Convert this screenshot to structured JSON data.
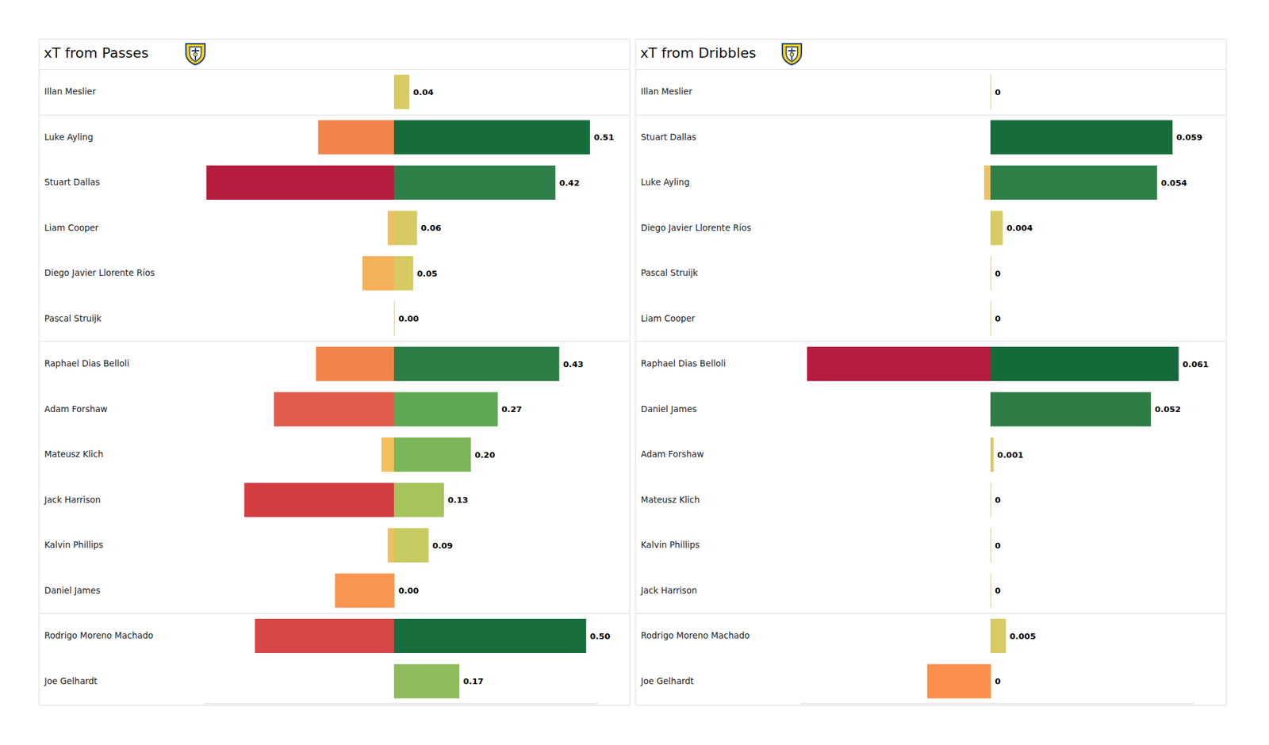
{
  "chart_data": [
    {
      "type": "bar",
      "orientation": "horizontal",
      "title": "xT from Passes",
      "categories": [
        "Illan Meslier",
        "Luke Ayling",
        "Stuart Dallas",
        "Liam Cooper",
        "Diego Javier Llorente Ríos",
        "Pascal Struijk",
        "Raphael Dias Belloli",
        "Adam Forshaw",
        "Mateusz Klich",
        "Jack Harrison",
        "Kalvin Phillips",
        "Daniel James",
        "Rodrigo Moreno Machado",
        "Joe Gelhardt"
      ],
      "series": [
        {
          "values": [
            0.04,
            0.51,
            0.42,
            0.06,
            0.05,
            0,
            0.43,
            0.27,
            0.2,
            0.13,
            0.09,
            0,
            0.5,
            0.17
          ],
          "value_labels": [
            "0.04",
            "0.51",
            "0.42",
            "0.06",
            "0.05",
            "0.00",
            "0.43",
            "0.27",
            "0.20",
            "0.13",
            "0.09",
            "0.00",
            "0.50",
            "0.17"
          ],
          "colors": [
            "#d8cb62",
            "#166d3b",
            "#2e8049",
            "#d6cb63",
            "#d7ca62",
            "#e0c85a",
            "#2d7d47",
            "#5ea854",
            "#7cb65a",
            "#a6c35c",
            "#c6cc62",
            "#e0c85a",
            "#176e3c",
            "#90bb5c"
          ]
        },
        {
          "axis": "y2",
          "values": [
            0,
            -0.036,
            -0.089,
            -0.003,
            -0.015,
            0,
            -0.037,
            -0.057,
            -0.006,
            -0.071,
            -0.003,
            -0.028,
            -0.066,
            0
          ],
          "colors": [
            "#e8c55a",
            "#f2834b",
            "#b71b3d",
            "#f0c060",
            "#f5b05a",
            "#e8c55a",
            "#f2834b",
            "#e05b4b",
            "#f3c05b",
            "#d33e43",
            "#f0c060",
            "#fa9550",
            "#d64745",
            "#e8c55a"
          ]
        }
      ],
      "ylim": [
        0,
        0.53
      ],
      "y2lim": [
        -0.09,
        0
      ],
      "data_labels": true,
      "tick_labels": false,
      "grid": false
    },
    {
      "type": "bar",
      "orientation": "horizontal",
      "title": "xT from Dribbles",
      "categories": [
        "Illan Meslier",
        "Stuart Dallas",
        "Luke Ayling",
        "Diego Javier Llorente Ríos",
        "Pascal Struijk",
        "Liam Cooper",
        "Raphael Dias Belloli",
        "Daniel James",
        "Adam Forshaw",
        "Mateusz Klich",
        "Kalvin Phillips",
        "Jack Harrison",
        "Rodrigo Moreno Machado",
        "Joe Gelhardt"
      ],
      "series": [
        {
          "values": [
            0,
            0.059,
            0.054,
            0.004,
            0,
            0,
            0.061,
            0.052,
            0.001,
            0,
            0,
            0,
            0.005,
            0
          ],
          "colors": [
            "#e0c85a",
            "#166d3b",
            "#2e8049",
            "#d8cb62",
            "#e0c85a",
            "#e0c85a",
            "#146b3a",
            "#2e7d45",
            "#d8cb62",
            "#e0c85a",
            "#e0c85a",
            "#e0c85a",
            "#d8cb62",
            "#e0c85a"
          ]
        },
        {
          "axis": "y2",
          "values": [
            0,
            0,
            -0.001,
            0,
            0,
            0,
            -0.029,
            0,
            0,
            0,
            0,
            0,
            0,
            -0.01
          ],
          "colors": [
            "#e8c55a",
            "#e8c55a",
            "#f0c060",
            "#e8c55a",
            "#e8c55a",
            "#e8c55a",
            "#b71b3d",
            "#e8c55a",
            "#e8c55a",
            "#e8c55a",
            "#e8c55a",
            "#e8c55a",
            "#e8c55a",
            "#fa8e4b"
          ]
        }
      ],
      "ylim": [
        0,
        0.066
      ],
      "y2lim": [
        -0.03,
        0
      ],
      "data_labels": true,
      "tick_labels": false,
      "grid": false
    }
  ]
}
